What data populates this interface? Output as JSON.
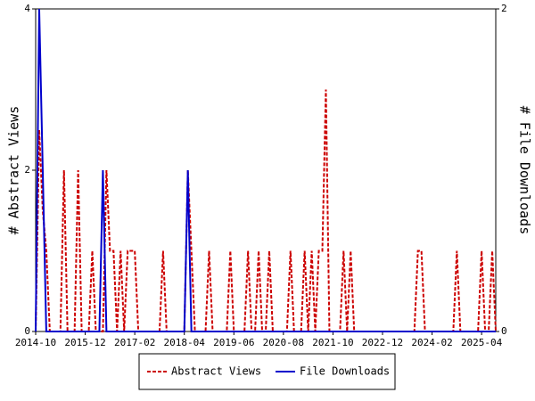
{
  "chart_data": {
    "type": "line",
    "y_label": "# Abstract Views",
    "y2_label": "# File Downloads",
    "x": [
      "2014-10",
      "2014-11",
      "2014-12",
      "2015-01",
      "2015-02",
      "2015-03",
      "2015-04",
      "2015-05",
      "2015-06",
      "2015-07",
      "2015-08",
      "2015-09",
      "2015-10",
      "2015-11",
      "2015-12",
      "2016-01",
      "2016-02",
      "2016-03",
      "2016-04",
      "2016-05",
      "2016-06",
      "2016-07",
      "2016-08",
      "2016-09",
      "2016-10",
      "2016-11",
      "2016-12",
      "2017-01",
      "2017-02",
      "2017-03",
      "2017-04",
      "2017-05",
      "2017-06",
      "2017-07",
      "2017-08",
      "2017-09",
      "2017-10",
      "2017-11",
      "2017-12",
      "2018-01",
      "2018-02",
      "2018-03",
      "2018-04",
      "2018-05",
      "2018-06",
      "2018-07",
      "2018-08",
      "2018-09",
      "2018-10",
      "2018-11",
      "2018-12",
      "2019-01",
      "2019-02",
      "2019-03",
      "2019-04",
      "2019-05",
      "2019-06",
      "2019-07",
      "2019-08",
      "2019-09",
      "2019-10",
      "2019-11",
      "2019-12",
      "2020-01",
      "2020-02",
      "2020-03",
      "2020-04",
      "2020-05",
      "2020-06",
      "2020-07",
      "2020-08",
      "2020-09",
      "2020-10",
      "2020-11",
      "2020-12",
      "2021-01",
      "2021-02",
      "2021-03",
      "2021-04",
      "2021-05",
      "2021-06",
      "2021-07",
      "2021-08",
      "2021-09",
      "2021-10",
      "2021-11",
      "2021-12",
      "2022-01",
      "2022-02",
      "2022-03",
      "2022-04",
      "2022-05",
      "2022-06",
      "2022-07",
      "2022-08",
      "2022-09",
      "2022-10",
      "2022-11",
      "2022-12",
      "2023-01",
      "2023-02",
      "2023-03",
      "2023-04",
      "2023-05",
      "2023-06",
      "2023-07",
      "2023-08",
      "2023-09",
      "2023-10",
      "2023-11",
      "2023-12",
      "2024-01",
      "2024-02",
      "2024-03",
      "2024-04",
      "2024-05",
      "2024-06",
      "2024-07",
      "2024-08",
      "2024-09",
      "2024-10",
      "2024-11",
      "2024-12",
      "2025-01",
      "2025-02",
      "2025-03",
      "2025-04",
      "2025-05",
      "2025-06",
      "2025-07",
      "2025-08"
    ],
    "xticks": [
      "2014-10",
      "2015-12",
      "2017-02",
      "2018-04",
      "2019-06",
      "2020-08",
      "2021-10",
      "2022-12",
      "2024-02",
      "2025-04"
    ],
    "ylim": [
      0,
      4
    ],
    "yticks": [
      0,
      2,
      4
    ],
    "y2lim": [
      0,
      2
    ],
    "y2ticks": [
      0,
      2
    ],
    "series": [
      {
        "name": "Abstract Views",
        "color": "#cc0000",
        "dash": true,
        "values": [
          0,
          2.5,
          1.5,
          1,
          0,
          0,
          0,
          0,
          2,
          0,
          0,
          0,
          2,
          0,
          0,
          0,
          1,
          0,
          0,
          0,
          2,
          1,
          1,
          0,
          1,
          0,
          1,
          1,
          1,
          0,
          0,
          0,
          0,
          0,
          0,
          0,
          1,
          0,
          0,
          0,
          0,
          0,
          0,
          2,
          1,
          0,
          0,
          0,
          0,
          1,
          0,
          0,
          0,
          0,
          0,
          1,
          0,
          0,
          0,
          0,
          1,
          0,
          0,
          1,
          0,
          0,
          1,
          0,
          0,
          0,
          0,
          0,
          1,
          0,
          0,
          0,
          1,
          0,
          1,
          0,
          1,
          1,
          3,
          0,
          0,
          0,
          0,
          1,
          0,
          1,
          0,
          0,
          0,
          0,
          0,
          0,
          0,
          0,
          0,
          0,
          0,
          0,
          0,
          0,
          0,
          0,
          0,
          0,
          1,
          1,
          0,
          0,
          0,
          0,
          0,
          0,
          0,
          0,
          0,
          1,
          0,
          0,
          0,
          0,
          0,
          0,
          1,
          0,
          0,
          1,
          0
        ]
      },
      {
        "name": "File Downloads",
        "color": "#0000cc",
        "axis": "y2",
        "values": [
          0,
          2,
          1,
          0,
          0,
          0,
          0,
          0,
          0,
          0,
          0,
          0,
          0,
          0,
          0,
          0,
          0,
          0,
          0,
          1,
          0,
          0,
          0,
          0,
          0,
          0,
          0,
          0,
          0,
          0,
          0,
          0,
          0,
          0,
          0,
          0,
          0,
          0,
          0,
          0,
          0,
          0,
          0,
          1,
          0,
          0,
          0,
          0,
          0,
          0,
          0,
          0,
          0,
          0,
          0,
          0,
          0,
          0,
          0,
          0,
          0,
          0,
          0,
          0,
          0,
          0,
          0,
          0,
          0,
          0,
          0,
          0,
          0,
          0,
          0,
          0,
          0,
          0,
          0,
          0,
          0,
          0,
          0,
          0,
          0,
          0,
          0,
          0,
          0,
          0,
          0,
          0,
          0,
          0,
          0,
          0,
          0,
          0,
          0,
          0,
          0,
          0,
          0,
          0,
          0,
          0,
          0,
          0,
          0,
          0,
          0,
          0,
          0,
          0,
          0,
          0,
          0,
          0,
          0,
          0,
          0,
          0,
          0,
          0,
          0,
          0,
          0,
          0,
          0,
          0,
          0
        ]
      }
    ]
  }
}
